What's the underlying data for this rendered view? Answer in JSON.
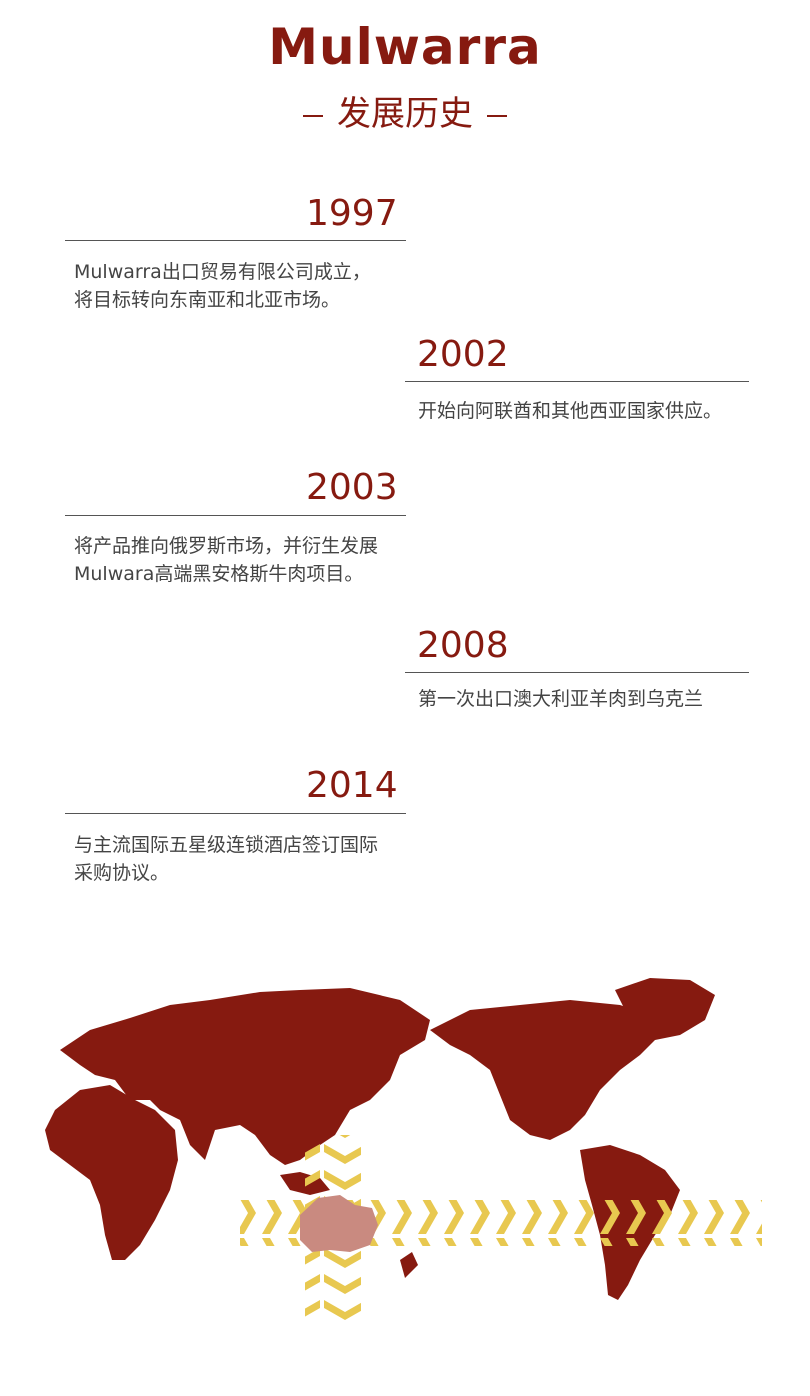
{
  "header": {
    "brand": "Mulwarra",
    "subtitle": "发展历史"
  },
  "timeline": [
    {
      "year": "1997",
      "lines": [
        "Mulwarra出口贸易有限公司成立，",
        "将目标转向东南亚和北亚市场。"
      ]
    },
    {
      "year": "2002",
      "lines": [
        "开始向阿联酋和其他西亚国家供应。"
      ]
    },
    {
      "year": "2003",
      "lines": [
        "将产品推向俄罗斯市场，并衍生发展",
        "Mulwara高端黑安格斯牛肉项目。"
      ]
    },
    {
      "year": "2008",
      "lines": [
        "第一次出口澳大利亚羊肉到乌克兰"
      ]
    },
    {
      "year": "2014",
      "lines": [
        "与主流国际五星级连锁酒店签订国际",
        "采购协议。"
      ]
    }
  ],
  "map": {
    "land_color": "#861a10",
    "highlight_color": "#c98a80",
    "arrow_color": "#e8c850",
    "icon": "world-map-icon"
  }
}
